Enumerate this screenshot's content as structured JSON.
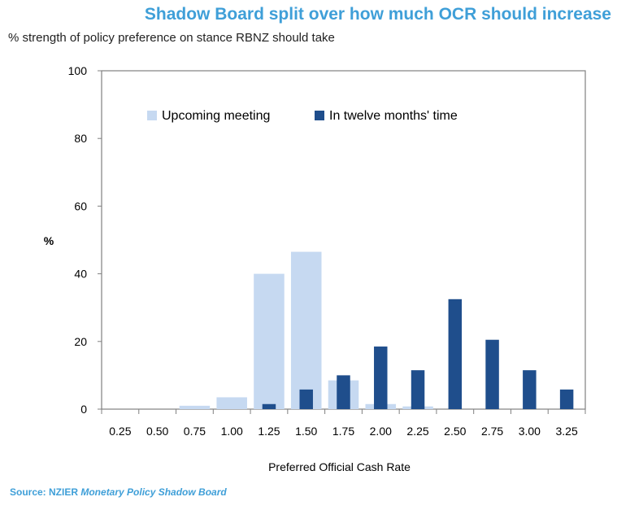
{
  "title": "Shadow Board split over how much OCR should increase",
  "subtitle": "% strength of policy preference on stance RBNZ should take",
  "source": {
    "prefix": "Source: NZIER ",
    "name": "Monetary Policy Shadow Board"
  },
  "colors": {
    "upcoming": "#c6d9f1",
    "twelve_months": "#1f4e8c",
    "title": "#3f9fd8",
    "axis": "#808080"
  },
  "chart_data": {
    "type": "bar",
    "xlabel": "Preferred  Official Cash Rate",
    "ylabel": "%",
    "ylim": [
      0,
      100
    ],
    "yticks": [
      0,
      20,
      40,
      60,
      80,
      100
    ],
    "grid": false,
    "legend_position": "top",
    "categories": [
      "0.25",
      "0.50",
      "0.75",
      "1.00",
      "1.25",
      "1.50",
      "1.75",
      "2.00",
      "2.25",
      "2.50",
      "2.75",
      "3.00",
      "3.25"
    ],
    "series": [
      {
        "name": "Upcoming meeting",
        "values": [
          0,
          0,
          1,
          3.5,
          40,
          46.5,
          8.5,
          1.5,
          0.8,
          0,
          0,
          0,
          0
        ]
      },
      {
        "name": "In twelve months' time",
        "values": [
          0,
          0,
          0,
          0,
          1.5,
          5.8,
          10,
          18.5,
          11.5,
          32.5,
          20.5,
          11.5,
          5.8
        ]
      }
    ]
  }
}
